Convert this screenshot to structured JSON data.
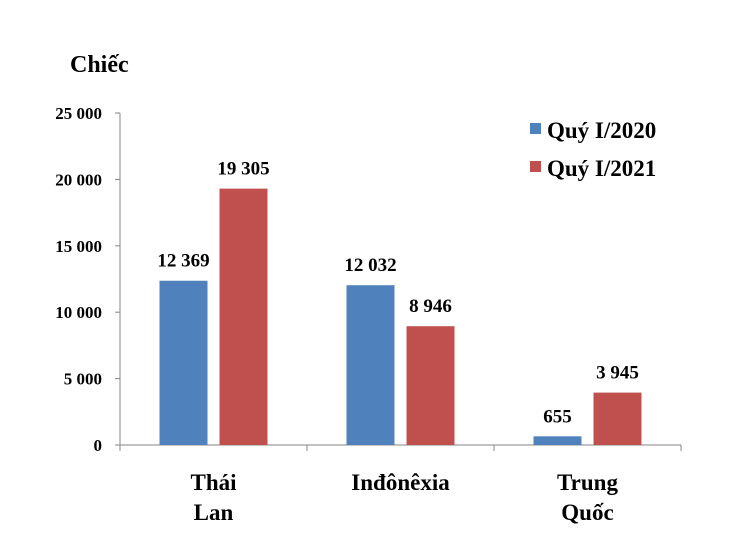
{
  "chart_data": {
    "type": "bar",
    "title": "",
    "ylabel": "Chiếc",
    "xlabel": "",
    "ylim": [
      0,
      25000
    ],
    "yticks": [
      0,
      5000,
      10000,
      15000,
      20000,
      25000
    ],
    "ytick_labels": [
      "0",
      "5 000",
      "10 000",
      "15 000",
      "20 000",
      "25 000"
    ],
    "grid": false,
    "legend_position": "top-right",
    "categories": [
      [
        "Thái",
        "Lan"
      ],
      [
        "Inđônêxia"
      ],
      [
        "Trung",
        "Quốc"
      ]
    ],
    "series": [
      {
        "name": "Quý I/2020",
        "color": "#4F81BD",
        "values": [
          12369,
          12032,
          655
        ],
        "labels": [
          "12 369",
          "12 032",
          "655"
        ]
      },
      {
        "name": "Quý I/2021",
        "color": "#C0504D",
        "values": [
          19305,
          8946,
          3945
        ],
        "labels": [
          "19 305",
          "8 946",
          "3 945"
        ]
      }
    ]
  }
}
